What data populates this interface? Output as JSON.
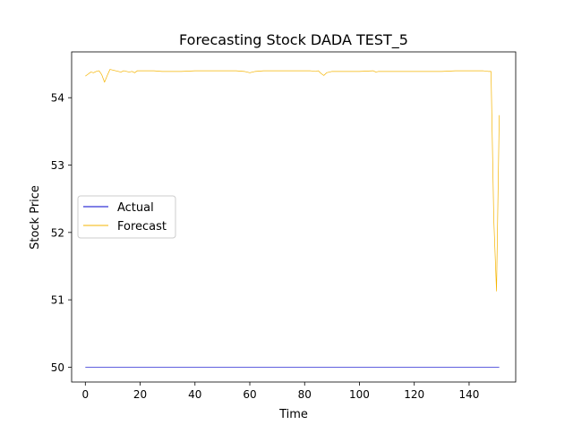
{
  "chart_data": {
    "type": "line",
    "title": "Forecasting Stock DADA TEST_5",
    "xlabel": "Time",
    "ylabel": "Stock Price",
    "xlim": [
      -5,
      157
    ],
    "ylim": [
      49.78,
      54.68
    ],
    "xticks": [
      0,
      20,
      40,
      60,
      80,
      100,
      120,
      140
    ],
    "yticks": [
      50,
      51,
      52,
      53,
      54
    ],
    "grid": false,
    "legend_position": "center-left",
    "series": [
      {
        "name": "Actual",
        "color": "#0000cc",
        "x": [
          0,
          151
        ],
        "y": [
          50.0,
          50.0
        ]
      },
      {
        "name": "Forecast",
        "color": "#f5b400",
        "x": [
          0,
          1,
          2,
          3,
          4,
          5,
          6,
          7,
          8,
          9,
          10,
          11,
          12,
          13,
          14,
          15,
          16,
          17,
          18,
          19,
          20,
          22,
          25,
          28,
          30,
          35,
          40,
          45,
          50,
          55,
          58,
          59,
          60,
          61,
          62,
          65,
          70,
          75,
          80,
          82,
          84,
          85,
          86,
          87,
          88,
          89,
          90,
          95,
          100,
          105,
          106,
          107,
          110,
          115,
          120,
          125,
          130,
          135,
          140,
          145,
          147,
          148,
          149,
          150,
          151
        ],
        "y": [
          54.32,
          54.35,
          54.38,
          54.37,
          54.39,
          54.4,
          54.34,
          54.23,
          54.33,
          54.42,
          54.41,
          54.4,
          54.39,
          54.38,
          54.4,
          54.39,
          54.38,
          54.39,
          54.37,
          54.4,
          54.4,
          54.4,
          54.4,
          54.39,
          54.39,
          54.39,
          54.4,
          54.4,
          54.4,
          54.4,
          54.39,
          54.38,
          54.37,
          54.38,
          54.39,
          54.4,
          54.4,
          54.4,
          54.4,
          54.4,
          54.39,
          54.4,
          54.36,
          54.33,
          54.37,
          54.38,
          54.39,
          54.39,
          54.39,
          54.4,
          54.38,
          54.39,
          54.39,
          54.39,
          54.39,
          54.39,
          54.39,
          54.4,
          54.4,
          54.4,
          54.39,
          54.39,
          52.2,
          51.13,
          53.74
        ]
      }
    ]
  }
}
